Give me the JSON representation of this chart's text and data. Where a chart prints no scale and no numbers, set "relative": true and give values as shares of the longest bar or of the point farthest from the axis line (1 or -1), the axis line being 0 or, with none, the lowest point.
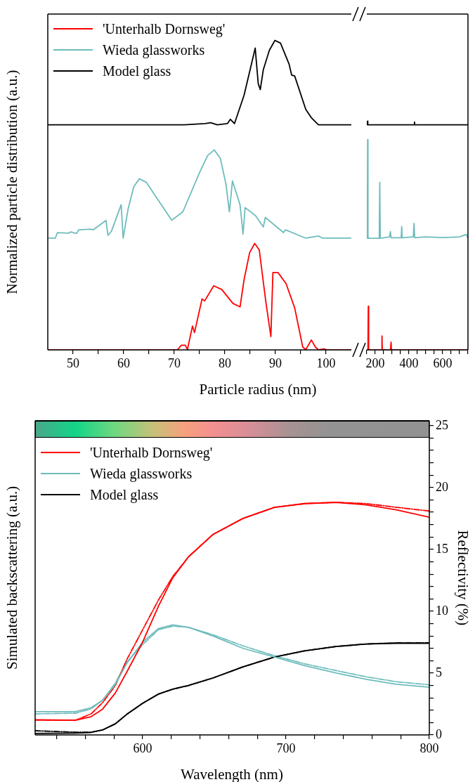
{
  "chart_data": [
    {
      "type": "line",
      "xlabel": "Particle radius (nm)",
      "ylabel": "Normalized particle distribution (a.u.)",
      "relative": true,
      "legend": "top left",
      "xlim": [
        45,
        105
      ],
      "xticks": [
        50,
        {
          "value": 55,
          "label": null
        },
        60,
        {
          "value": 65,
          "label": null
        },
        70,
        {
          "value": 75,
          "label": null
        },
        80,
        {
          "value": 85,
          "label": null
        },
        90,
        {
          "value": 95,
          "label": null
        },
        100
      ],
      "series": [
        {
          "name": "'Unterhalb Dornsweg'",
          "color": "#ff0000",
          "x": [
            45,
            70.6,
            71.4,
            72.2,
            72.6,
            73.6,
            74.0,
            75.5,
            76.0,
            77.8,
            79.4,
            81.6,
            83.0,
            83.8,
            84.9,
            85.9,
            86.8,
            88.1,
            89.1,
            89.5,
            90.5,
            92.1,
            93.8,
            95.4,
            96.0,
            97.1,
            97.9,
            98.5,
            99.6,
            100.2,
            105
          ],
          "values": [
            0,
            0,
            0.015,
            0.015,
            0.001,
            0.077,
            0.056,
            0.165,
            0.158,
            0.207,
            0.195,
            0.15,
            0.139,
            0.227,
            0.314,
            0.344,
            0.323,
            0.155,
            0.043,
            0.25,
            0.25,
            0.214,
            0.136,
            0.009,
            0.001,
            0.032,
            0.009,
            0,
            0.003,
            0,
            0
          ]
        },
        {
          "name": "Wieda glassworks",
          "color": "#6fbcbc",
          "x": [
            45,
            46.5,
            46.9,
            49.0,
            49.6,
            50.7,
            51.1,
            53.5,
            54.0,
            56.5,
            56.9,
            57.6,
            59.5,
            59.9,
            60.9,
            62.0,
            63.1,
            64.5,
            66.7,
            69.5,
            71.7,
            75.0,
            76.6,
            77.9,
            79.1,
            80.2,
            80.9,
            81.5,
            83.0,
            83.6,
            84.0,
            86.1,
            87.6,
            88.0,
            91.6,
            92.0,
            96.0,
            98.5,
            99.3,
            105
          ],
          "values": [
            0.361,
            0.361,
            0.379,
            0.377,
            0.381,
            0.376,
            0.388,
            0.39,
            0.388,
            0.418,
            0.37,
            0.384,
            0.469,
            0.361,
            0.457,
            0.527,
            0.553,
            0.541,
            0.487,
            0.419,
            0.446,
            0.573,
            0.628,
            0.646,
            0.619,
            0.537,
            0.446,
            0.546,
            0.469,
            0.374,
            0.46,
            0.433,
            0.397,
            0.428,
            0.379,
            0.388,
            0.361,
            0.368,
            0.361,
            0.361
          ]
        },
        {
          "name": "Model glass",
          "color": "#000000",
          "x": [
            45,
            72,
            76.1,
            77.2,
            78.5,
            80.5,
            81.1,
            81.9,
            83.8,
            86.0,
            86.6,
            87.0,
            87.6,
            88.8,
            89.9,
            91.0,
            92.7,
            93.2,
            93.8,
            96.0,
            97.1,
            98.5,
            105
          ],
          "values": [
            0.727,
            0.727,
            0.731,
            0.734,
            0.727,
            0.731,
            0.745,
            0.731,
            0.823,
            0.975,
            0.86,
            0.841,
            0.905,
            0.968,
            1.0,
            0.991,
            0.923,
            0.888,
            0.885,
            0.777,
            0.75,
            0.727,
            0.727
          ]
        }
      ]
    },
    {
      "type": "line",
      "relative": true,
      "tick_labels": "x",
      "xlim": [
        150,
        750
      ],
      "xticks": [
        {
          "value": 150,
          "label": null
        },
        200,
        {
          "value": 250,
          "label": null
        },
        {
          "value": 300,
          "label": null
        },
        {
          "value": 350,
          "label": null
        },
        400,
        {
          "value": 450,
          "label": null
        },
        {
          "value": 500,
          "label": null
        },
        {
          "value": 550,
          "label": null
        },
        600,
        {
          "value": 650,
          "label": null
        },
        {
          "value": 700,
          "label": null
        },
        {
          "value": 750,
          "label": null
        }
      ],
      "series": [
        {
          "color": "#ff0000",
          "x": [
            150,
            157,
            159,
            161,
            238,
            240,
            242,
            291,
            293,
            294,
            296,
            750
          ],
          "values": [
            0,
            0,
            0.191,
            0,
            0,
            0.061,
            0,
            0,
            0.027,
            0.034,
            0,
            0
          ]
        },
        {
          "color": "#6fbcbc",
          "x": [
            150,
            153,
            155,
            157,
            159,
            224,
            227,
            230,
            285,
            290,
            294,
            354,
            357,
            360,
            426,
            430,
            434,
            500,
            600,
            700,
            740,
            750
          ],
          "values": [
            0.488,
            0.494,
            0.919,
            0.501,
            0.488,
            0.488,
            0.732,
            0.488,
            0.494,
            0.517,
            0.49,
            0.49,
            0.539,
            0.49,
            0.494,
            0.553,
            0.49,
            0.494,
            0.491,
            0.494,
            0.505,
            0.488
          ]
        },
        {
          "color": "#000000",
          "x": [
            150,
            154,
            155,
            156,
            432,
            433,
            434,
            750
          ],
          "values": [
            0.984,
            0.984,
            1,
            0.984,
            0.984,
            0.996,
            0.984,
            0.984
          ]
        }
      ]
    },
    {
      "type": "line",
      "xlabel": "Wavelength (nm)",
      "ylabel": "Simulated backscattering (a.u.)",
      "y2label": "Reflectivity (%)",
      "legend": "top left",
      "xlim": [
        525,
        800
      ],
      "xticks": [
        {
          "value": 540,
          "label": null
        },
        {
          "value": 560,
          "label": null
        },
        {
          "value": 580,
          "label": null
        },
        600,
        {
          "value": 620,
          "label": null
        },
        {
          "value": 640,
          "label": null
        },
        {
          "value": 660,
          "label": null
        },
        {
          "value": 680,
          "label": null
        },
        700,
        {
          "value": 720,
          "label": null
        },
        {
          "value": 740,
          "label": null
        },
        {
          "value": 760,
          "label": null
        },
        {
          "value": 780,
          "label": null
        },
        800
      ],
      "y2lim": [
        0,
        25.4
      ],
      "y2ticks": [
        0,
        {
          "value": 1,
          "label": null
        },
        {
          "value": 2,
          "label": null
        },
        {
          "value": 3,
          "label": null
        },
        {
          "value": 4,
          "label": null
        },
        5,
        {
          "value": 6,
          "label": null
        },
        {
          "value": 7,
          "label": null
        },
        {
          "value": 8,
          "label": null
        },
        {
          "value": 9,
          "label": null
        },
        10,
        {
          "value": 11,
          "label": null
        },
        {
          "value": 12,
          "label": null
        },
        {
          "value": 13,
          "label": null
        },
        {
          "value": 14,
          "label": null
        },
        15,
        {
          "value": 16,
          "label": null
        },
        {
          "value": 17,
          "label": null
        },
        {
          "value": 18,
          "label": null
        },
        {
          "value": 19,
          "label": null
        },
        20,
        {
          "value": 21,
          "label": null
        },
        {
          "value": 22,
          "label": null
        },
        {
          "value": 23,
          "label": null
        },
        {
          "value": 24,
          "label": null
        },
        25
      ],
      "x": [
        525,
        553,
        564,
        572,
        581,
        589,
        600,
        611,
        621,
        632,
        649,
        670,
        692,
        713,
        735,
        756,
        777,
        800
      ],
      "series": [
        {
          "name": "'Unterhalb Dornsweg'",
          "color": "#ff0000",
          "axis": "y2",
          "values": [
            1.23,
            1.18,
            1.47,
            2.08,
            3.4,
            5.1,
            7.5,
            10.4,
            12.7,
            14.4,
            16.2,
            17.5,
            18.4,
            18.7,
            18.8,
            18.6,
            18.2,
            17.6
          ]
        },
        {
          "name": "Wieda glassworks",
          "color": "#6fbcbc",
          "axis": "y2",
          "values": [
            1.88,
            1.88,
            2.2,
            2.8,
            4.1,
            5.8,
            7.5,
            8.6,
            8.9,
            8.7,
            8.0,
            7.0,
            6.3,
            5.6,
            5.0,
            4.5,
            4.1,
            3.85
          ]
        },
        {
          "name": "Model glass",
          "color": "#000000",
          "axis": "y2",
          "values": [
            0.12,
            0.15,
            0.2,
            0.4,
            0.9,
            1.67,
            2.56,
            3.3,
            3.7,
            4.0,
            4.6,
            5.5,
            6.3,
            6.8,
            7.15,
            7.35,
            7.4,
            7.4
          ]
        },
        {
          "color": "#ff0000",
          "axis": "y2",
          "line_style": "dashed",
          "values": [
            1.2,
            1.18,
            1.7,
            2.6,
            4.0,
            6.1,
            8.5,
            10.9,
            12.8,
            14.4,
            16.2,
            17.5,
            18.4,
            18.7,
            18.8,
            18.7,
            18.4,
            18.1
          ]
        },
        {
          "color": "#6fbcbc",
          "axis": "y2",
          "line_style": "dashed",
          "values": [
            1.7,
            1.76,
            2.1,
            2.8,
            4.2,
            5.9,
            7.3,
            8.5,
            8.8,
            8.7,
            8.1,
            7.2,
            6.4,
            5.75,
            5.2,
            4.7,
            4.3,
            4.05
          ]
        },
        {
          "color": "#000000",
          "axis": "y2",
          "line_style": "dashed",
          "values": [
            0.34,
            0.22,
            0.22,
            0.4,
            0.9,
            1.67,
            2.56,
            3.3,
            3.7,
            4.0,
            4.6,
            5.5,
            6.3,
            6.8,
            7.15,
            7.35,
            7.45,
            7.45
          ]
        }
      ]
    }
  ]
}
